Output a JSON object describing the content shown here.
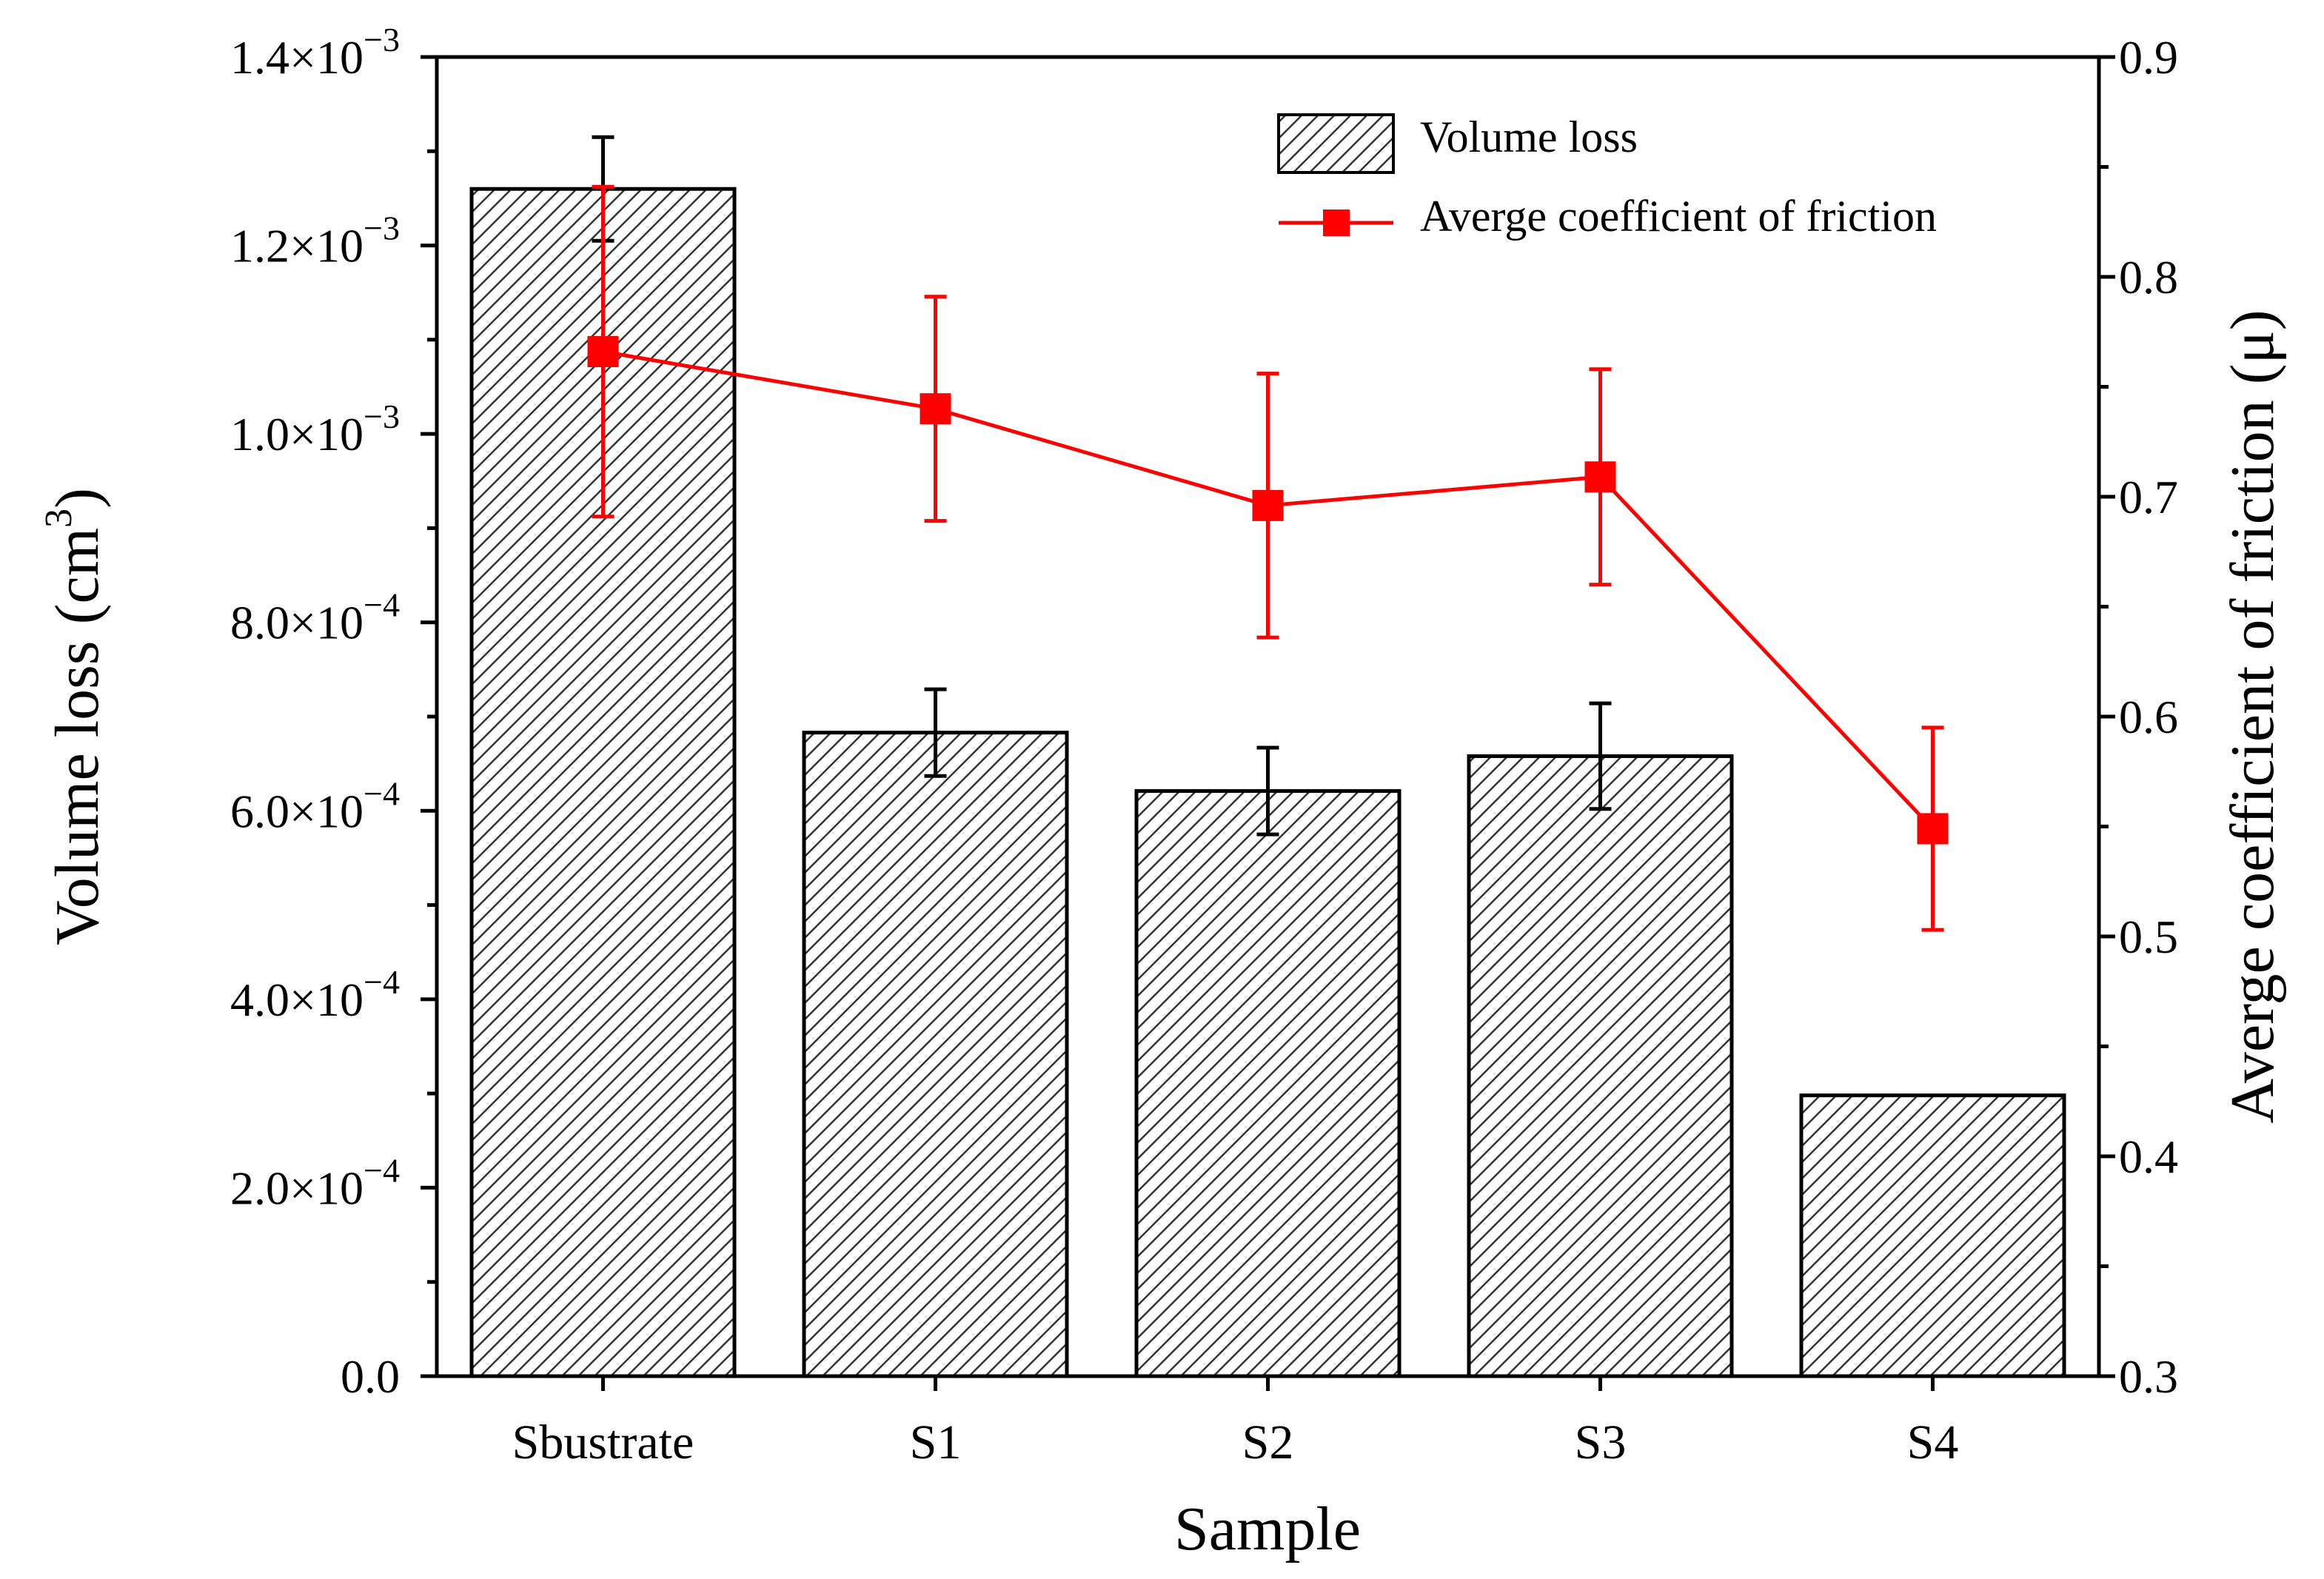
{
  "chart_data": {
    "type": "bar+line",
    "xlabel": "Sample",
    "ylabel": "Volume loss",
    "ylabel_unit_base": "cm",
    "ylabel_unit_exp": "3",
    "y2label": "Averge coefficient of friction (μ)",
    "categories": [
      "Sbustrate",
      "S1",
      "S2",
      "S3",
      "S4"
    ],
    "ylim": [
      0,
      0.0014
    ],
    "y2lim": [
      0.3,
      0.9
    ],
    "yticks": [
      {
        "value": 0.0014,
        "mant": "1.4×10",
        "exp": "−3"
      },
      {
        "value": 0.0012,
        "mant": "1.2×10",
        "exp": "−3"
      },
      {
        "value": 0.001,
        "mant": "1.0×10",
        "exp": "−3"
      },
      {
        "value": 0.0008,
        "mant": "8.0×10",
        "exp": "−4"
      },
      {
        "value": 0.0006,
        "mant": "6.0×10",
        "exp": "−4"
      },
      {
        "value": 0.0004,
        "mant": "4.0×10",
        "exp": "−4"
      },
      {
        "value": 0.0002,
        "mant": "2.0×10",
        "exp": "−4"
      },
      {
        "value": 0,
        "mant": "0.0",
        "exp": ""
      }
    ],
    "y2ticks": [
      "0.9",
      "0.8",
      "0.7",
      "0.6",
      "0.5",
      "0.4",
      "0.3"
    ],
    "series": [
      {
        "name": "Volume loss",
        "kind": "bar",
        "axis": "left",
        "values": [
          0.00126,
          0.000683,
          0.000621,
          0.000658,
          0.000298
        ],
        "errors": [
          5.5e-05,
          4.6e-05,
          4.6e-05,
          5.6e-05,
          null
        ]
      },
      {
        "name": "Averge coefficient of friction",
        "kind": "line",
        "axis": "right",
        "color": "#ff0000",
        "values": [
          0.766,
          0.74,
          0.696,
          0.709,
          0.549
        ],
        "errors": [
          0.075,
          0.051,
          0.06,
          0.049,
          0.046
        ]
      }
    ],
    "legend_position": "top-right"
  }
}
